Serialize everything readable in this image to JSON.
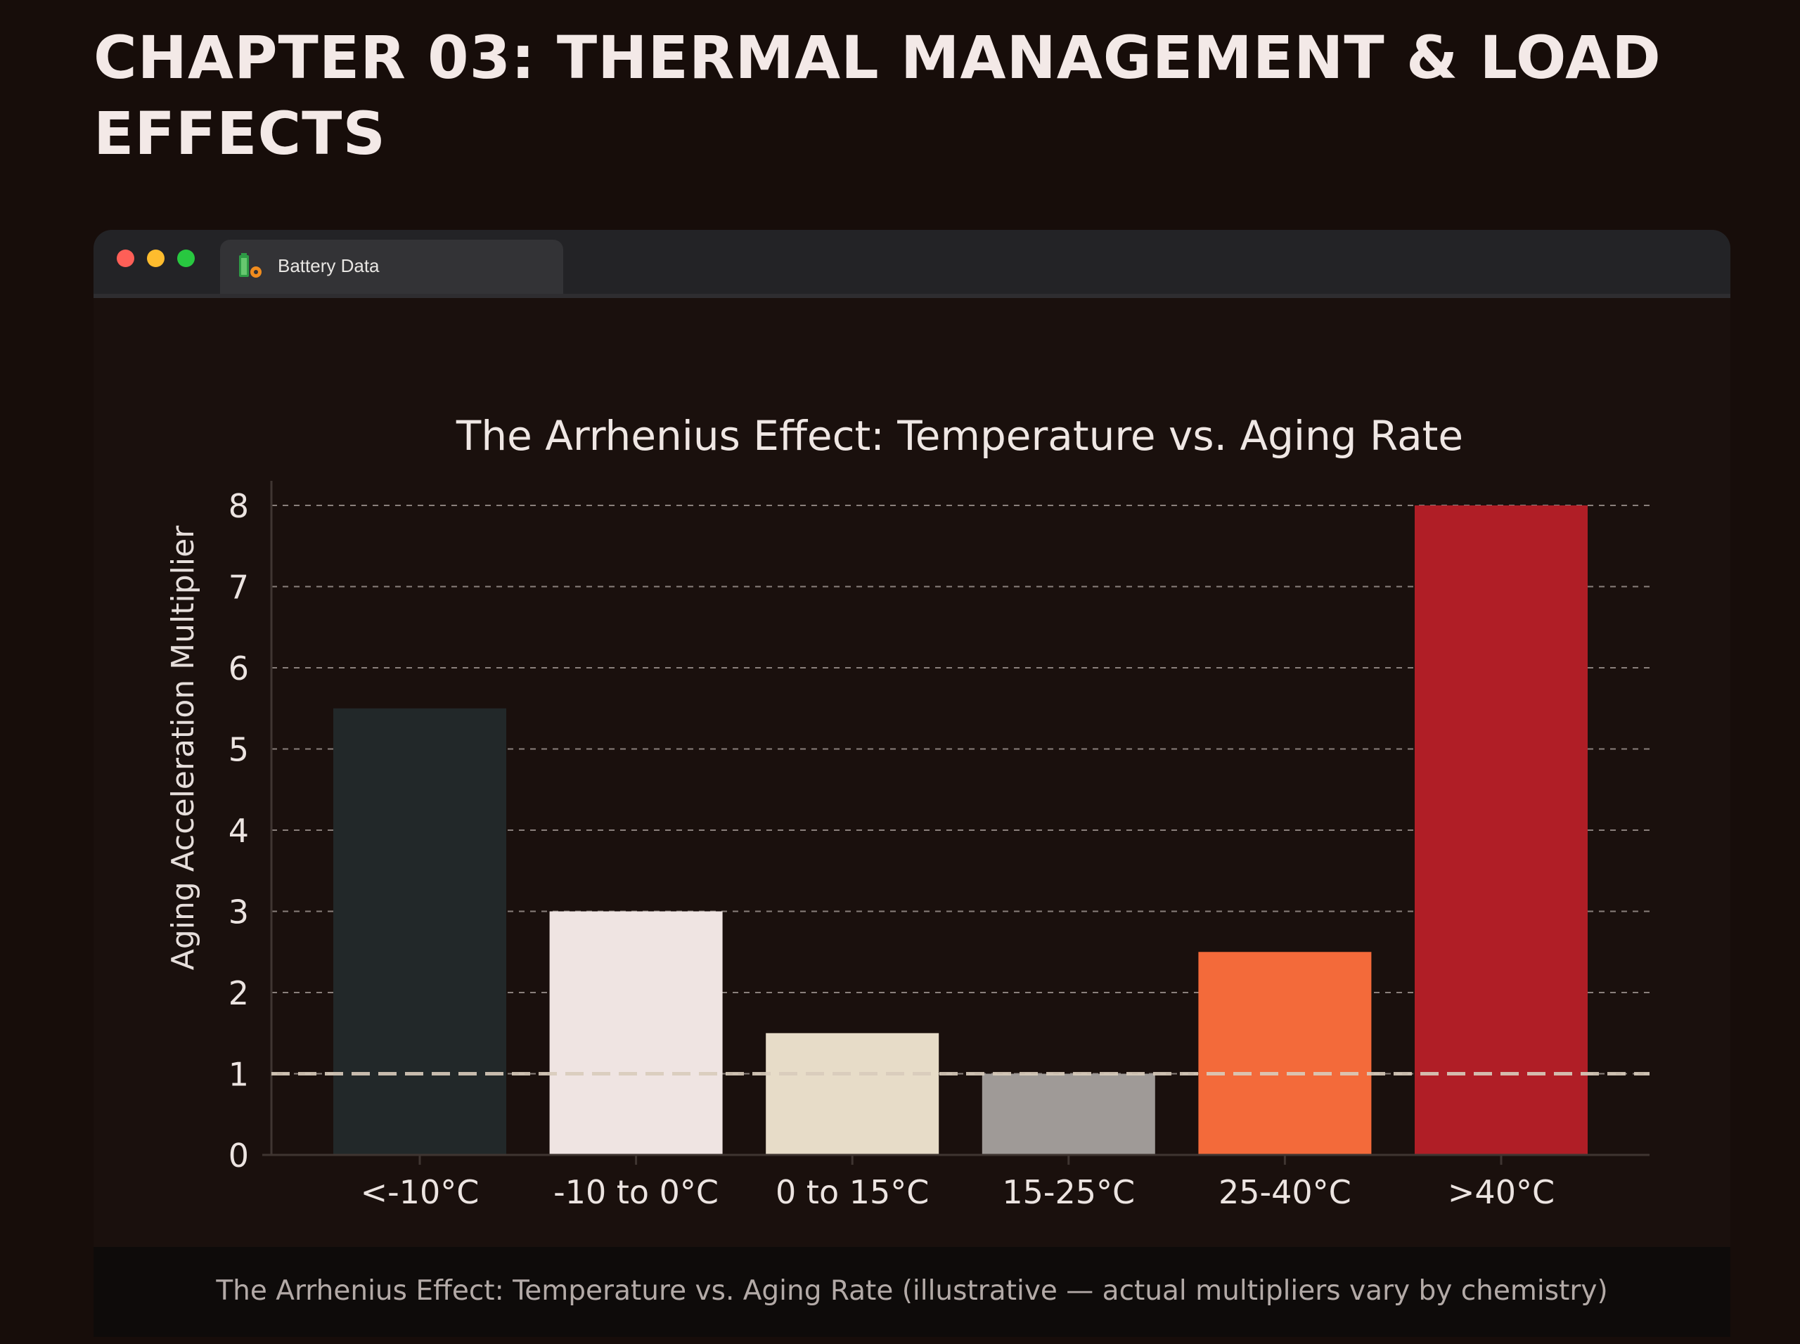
{
  "page": {
    "heading": "CHAPTER 03: THERMAL MANAGEMENT & LOAD\nEFFECTS"
  },
  "window": {
    "tab_title": "Battery Data",
    "tab_icon": "battery-gear-icon",
    "caption": "The Arrhenius Effect: Temperature vs. Aging Rate (illustrative — actual multipliers vary by chemistry)"
  },
  "colors": {
    "page_background": "#170d0a",
    "heading": "#f3e9e7",
    "grid": "#8a807c",
    "baseline": "#d9ccbc"
  },
  "chart_data": {
    "type": "bar",
    "title": "The Arrhenius Effect: Temperature vs. Aging Rate",
    "xlabel": "",
    "ylabel": "Aging Acceleration Multiplier",
    "categories": [
      "<-10°C",
      "-10 to 0°C",
      "0 to 15°C",
      "15-25°C",
      "25-40°C",
      ">40°C"
    ],
    "values": [
      5.5,
      3,
      1.5,
      1,
      2.5,
      8
    ],
    "bar_colors": [
      "#222829",
      "#efe4e2",
      "#e7dcc8",
      "#9f9a97",
      "#f36a3a",
      "#b01e26"
    ],
    "ylim": [
      0,
      8
    ],
    "yticks": [
      0,
      1,
      2,
      3,
      4,
      5,
      6,
      7,
      8
    ],
    "grid": "horizontal dashed",
    "reference_line": {
      "y": 1,
      "style": "dashed"
    },
    "legend": "none"
  }
}
